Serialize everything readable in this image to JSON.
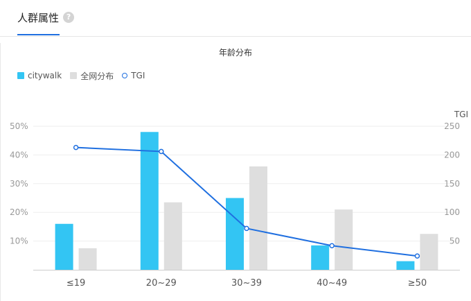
{
  "tabs": [
    {
      "label": "人群属性"
    }
  ],
  "help_glyph": "?",
  "chart_data": {
    "type": "bar",
    "title": "年龄分布",
    "categories": [
      "≤19",
      "20~29",
      "30~39",
      "40~49",
      "≥50"
    ],
    "series": [
      {
        "name": "citywalk",
        "values": [
          16,
          48,
          25,
          8.5,
          3
        ],
        "color": "#33c5f3"
      },
      {
        "name": "全网分布",
        "values": [
          7.5,
          23.5,
          36,
          21,
          12.5
        ],
        "color": "#dedede"
      }
    ],
    "line_series": {
      "name": "TGI",
      "values": [
        213,
        206,
        72,
        42,
        24
      ],
      "color": "#1f6fe0"
    },
    "ylim_left": [
      0,
      50
    ],
    "ylim_right": [
      0,
      250
    ],
    "yticks_left": [
      "10%",
      "20%",
      "30%",
      "40%",
      "50%"
    ],
    "yticks_right": [
      "50",
      "100",
      "150",
      "200",
      "250"
    ],
    "right_axis_title": "TGI",
    "legend_position": "top-left",
    "grid": true
  }
}
